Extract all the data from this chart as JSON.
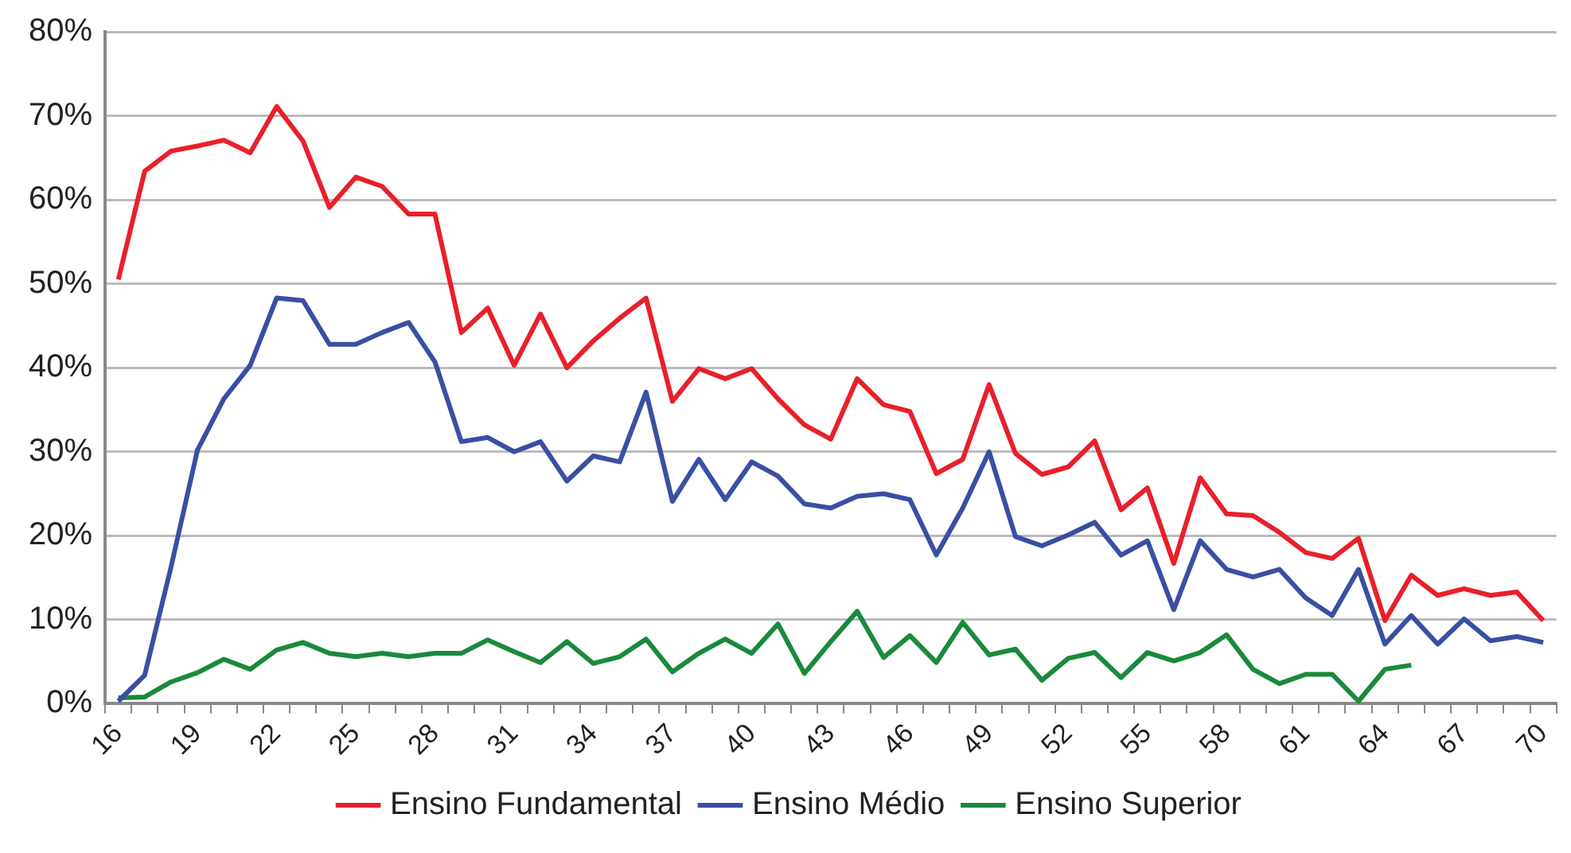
{
  "chart_data": {
    "type": "line",
    "categories": [
      "16",
      null,
      null,
      "19",
      null,
      null,
      "22",
      null,
      null,
      "25",
      null,
      null,
      "28",
      null,
      null,
      "31",
      null,
      null,
      "34",
      null,
      null,
      "37",
      null,
      null,
      "40",
      null,
      null,
      "43",
      null,
      null,
      "46",
      null,
      null,
      "49",
      null,
      null,
      "52",
      null,
      null,
      "55",
      null,
      null,
      "58",
      null,
      null,
      "61",
      null,
      null,
      "64",
      null,
      null,
      "67",
      null,
      null,
      "70"
    ],
    "series": [
      {
        "name": "Ensino Fundamental",
        "color": "#e8202a",
        "values": [
          50.5,
          63.4,
          65.8,
          66.4,
          67.1,
          65.6,
          71.1,
          67,
          59.1,
          62.7,
          61.6,
          58.3,
          58.3,
          44.2,
          47.1,
          40.3,
          46.4,
          40,
          43.2,
          45.9,
          48.3,
          36,
          39.9,
          38.7,
          39.9,
          36.3,
          33.2,
          31.5,
          38.7,
          35.6,
          34.8,
          27.4,
          29.1,
          38,
          29.8,
          27.3,
          28.2,
          31.3,
          23.1,
          25.7,
          16.7,
          26.9,
          22.6,
          22.4,
          20.4,
          18,
          17.3,
          19.7,
          9.9,
          15.3,
          12.9,
          13.7,
          12.9,
          13.3,
          9.9
        ]
      },
      {
        "name": "Ensino Médio",
        "color": "#3a4fa3",
        "values": [
          0.3,
          3.4,
          16.3,
          30.2,
          36.3,
          40.3,
          48.3,
          48,
          42.8,
          42.8,
          44.2,
          45.4,
          40.7,
          31.2,
          31.7,
          30,
          31.2,
          26.5,
          29.5,
          28.8,
          37.1,
          24.1,
          29.1,
          24.3,
          28.8,
          27.1,
          23.8,
          23.3,
          24.7,
          25,
          24.3,
          17.7,
          23.3,
          30,
          19.9,
          18.8,
          20.1,
          21.6,
          17.7,
          19.4,
          11.2,
          19.4,
          16,
          15.1,
          16,
          12.6,
          10.5,
          16,
          7.1,
          10.5,
          7.1,
          10.1,
          7.5,
          8,
          7.3
        ]
      },
      {
        "name": "Ensino Superior",
        "color": "#1a8a3c",
        "values": [
          0.7,
          0.8,
          2.6,
          3.7,
          5.3,
          4.1,
          6.4,
          7.3,
          6,
          5.6,
          6,
          5.6,
          6,
          6,
          7.6,
          6.2,
          4.9,
          7.4,
          4.8,
          5.6,
          7.7,
          3.8,
          6,
          7.7,
          6,
          9.5,
          3.6,
          7.4,
          11,
          5.5,
          8.1,
          4.9,
          9.7,
          5.8,
          6.5,
          2.8,
          5.4,
          6.1,
          3.1,
          6.1,
          5.1,
          6.1,
          8.2,
          4.1,
          2.4,
          3.5,
          3.5,
          0.3,
          4.1,
          4.6,
          null,
          null,
          null,
          null,
          null
        ]
      }
    ],
    "ylim": [
      0,
      80
    ],
    "yticks": [
      {
        "value": 0,
        "label": "0%"
      },
      {
        "value": 10,
        "label": "10%"
      },
      {
        "value": 20,
        "label": "20%"
      },
      {
        "value": 30,
        "label": "30%"
      },
      {
        "value": 40,
        "label": "40%"
      },
      {
        "value": 50,
        "label": "50%"
      },
      {
        "value": 60,
        "label": "60%"
      },
      {
        "value": 70,
        "label": "70%"
      },
      {
        "value": 80,
        "label": "80%"
      }
    ],
    "grid": "y",
    "legend": "bottom",
    "marker": "none",
    "line_style": "solid"
  }
}
